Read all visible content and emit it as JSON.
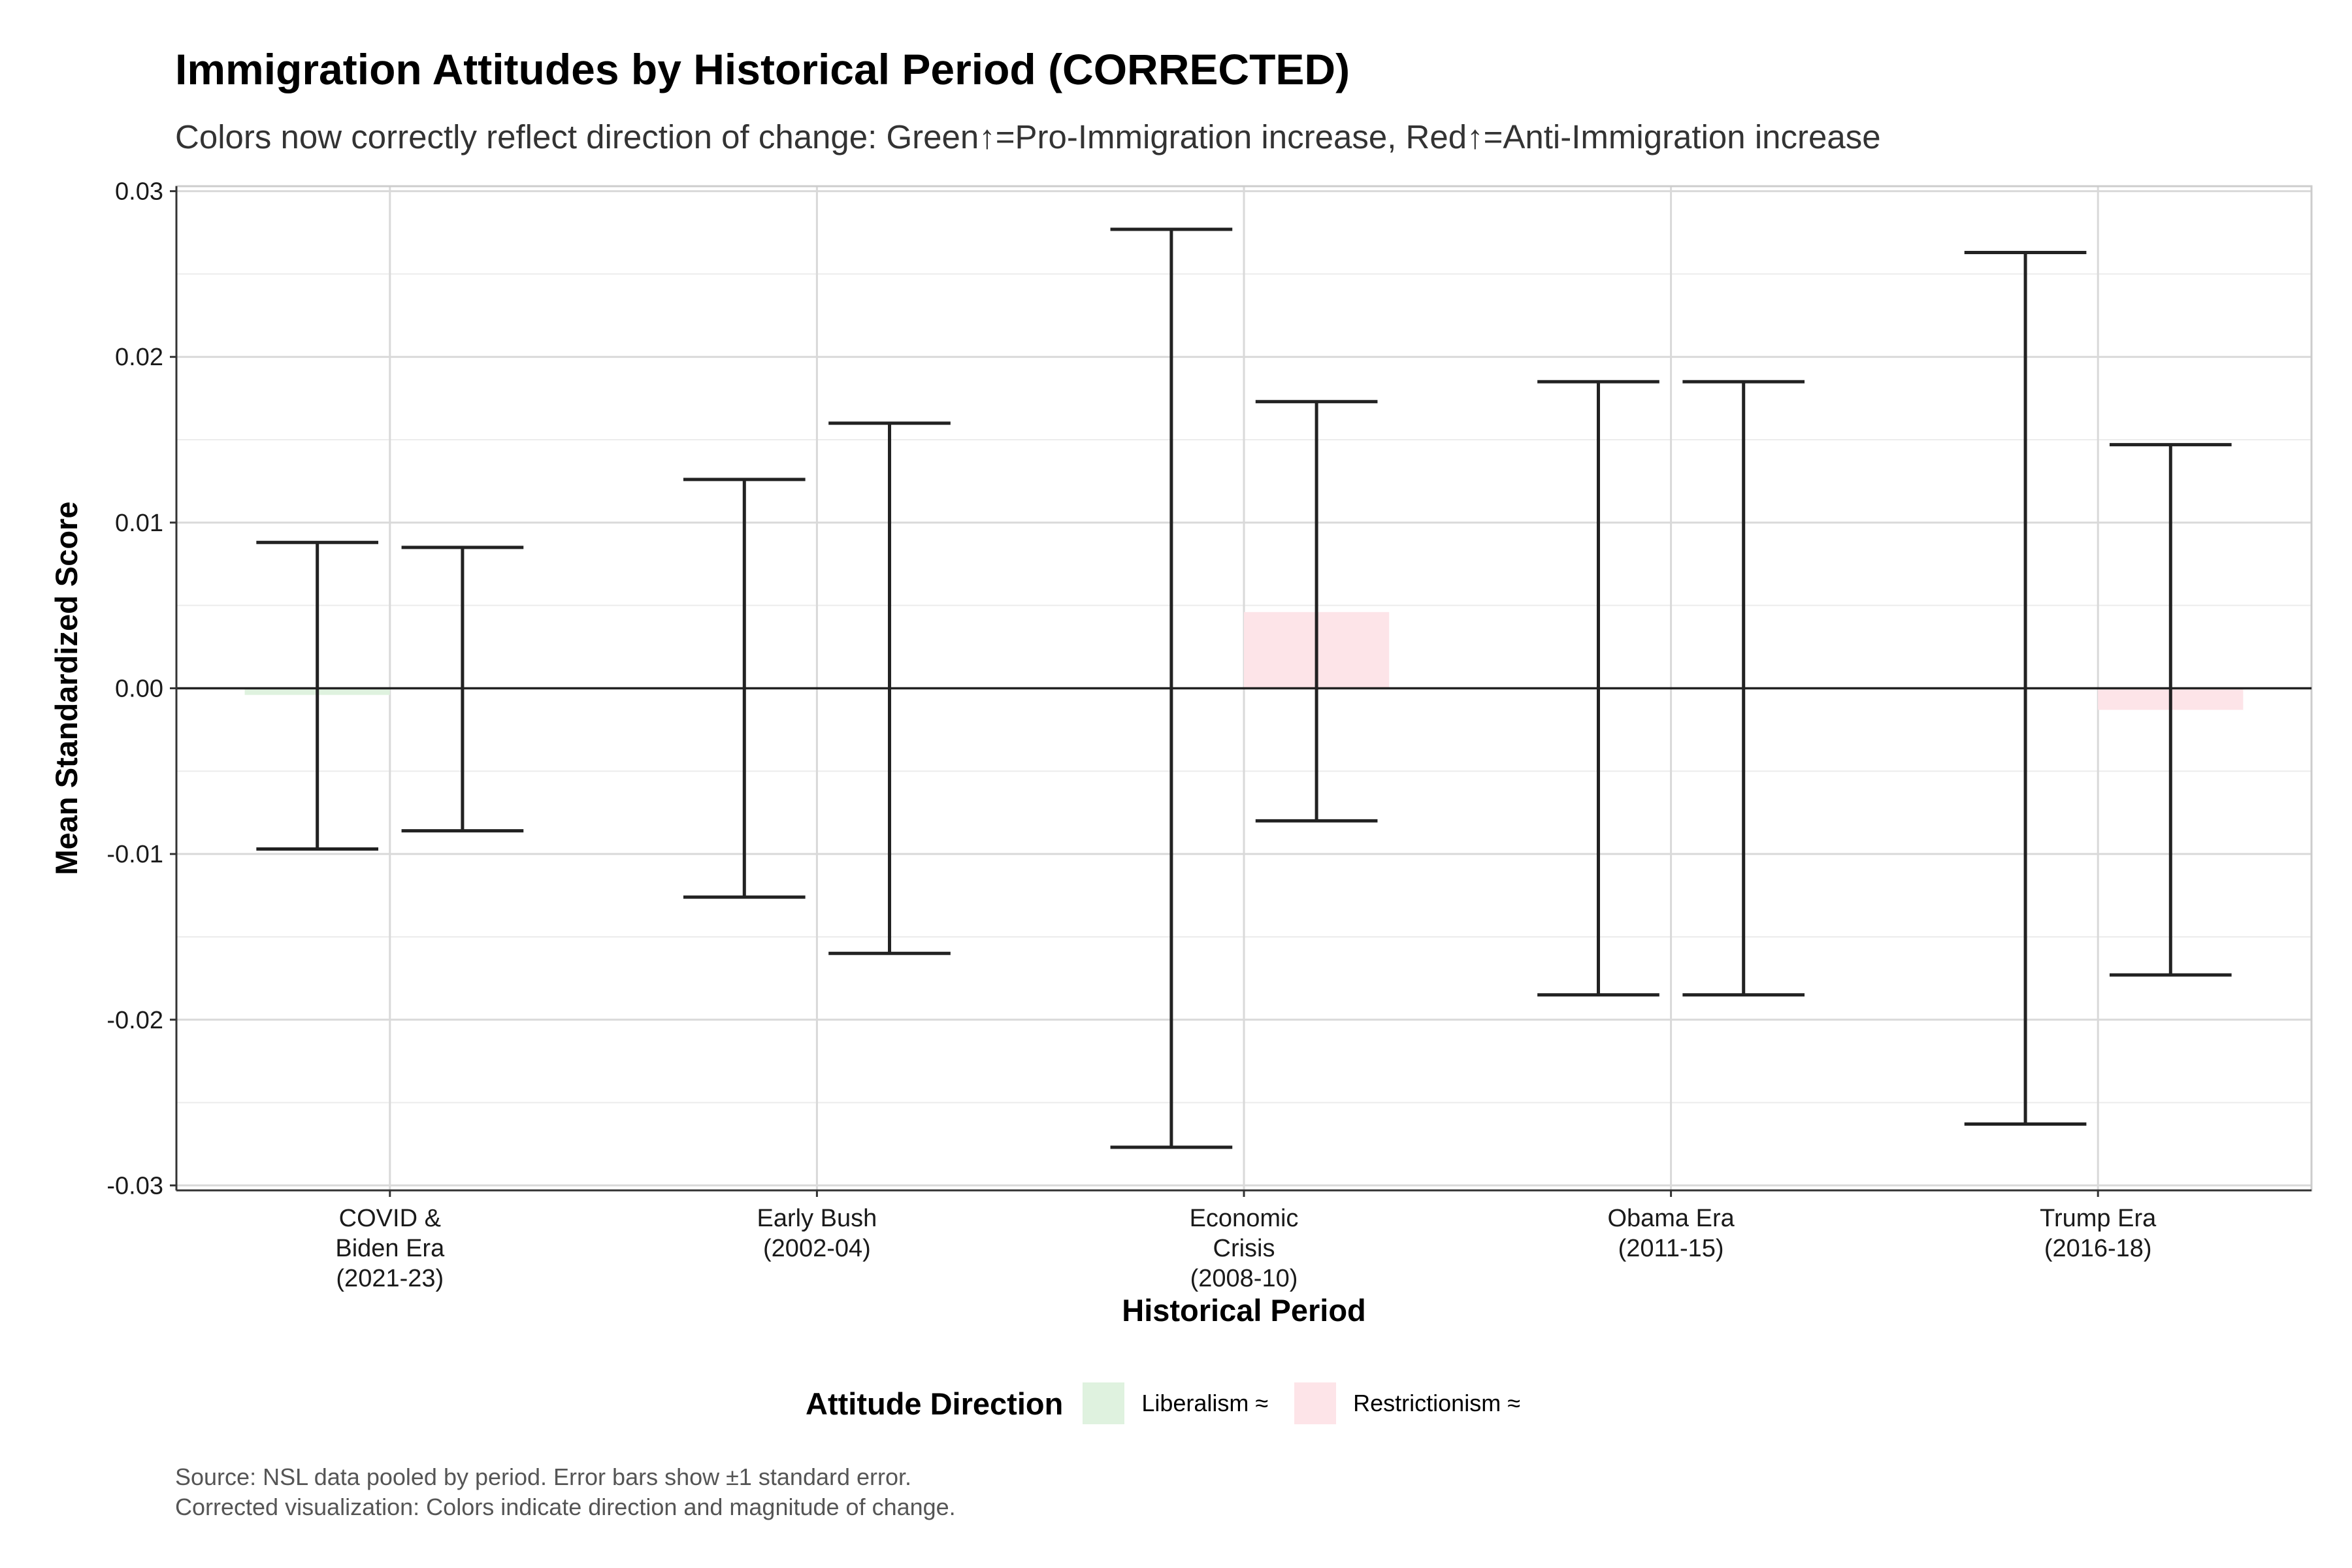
{
  "title": "Immigration Attitudes by Historical Period (CORRECTED)",
  "subtitle": "Colors now correctly reflect direction of change: Green↑=Pro-Immigration increase, Red↑=Anti-Immigration increase",
  "caption_line1": "Source: NSL data pooled by period. Error bars show ±1 standard error.",
  "caption_line2": "Corrected visualization: Colors indicate direction and magnitude of change.",
  "legend": {
    "title": "Attitude Direction",
    "items": [
      {
        "label": "Liberalism ≈",
        "color": "#dff2df"
      },
      {
        "label": "Restrictionism ≈",
        "color": "#fde4e8"
      }
    ]
  },
  "chart_data": {
    "type": "bar",
    "xlabel": "Historical Period",
    "ylabel": "Mean Standardized Score",
    "ylim": [
      -0.0303,
      0.0303
    ],
    "yticks": [
      {
        "value": 0.03,
        "label": "0.03"
      },
      {
        "value": 0.02,
        "label": "0.02"
      },
      {
        "value": 0.01,
        "label": "0.01"
      },
      {
        "value": 0.0,
        "label": "0.00"
      },
      {
        "value": -0.01,
        "label": "-0.01"
      },
      {
        "value": -0.02,
        "label": "-0.02"
      },
      {
        "value": -0.03,
        "label": "-0.03"
      }
    ],
    "categories": [
      [
        "COVID &",
        "Biden Era",
        "(2021-23)"
      ],
      [
        "Early Bush",
        "(2002-04)"
      ],
      [
        "Economic",
        "Crisis",
        "(2008-10)"
      ],
      [
        "Obama Era",
        "(2011-15)"
      ],
      [
        "Trump Era",
        "(2016-18)"
      ]
    ],
    "series": [
      {
        "name": "Liberalism ≈",
        "color": "#dff2df",
        "values": [
          -0.0004,
          0.0,
          0.0,
          0.0,
          0.0
        ],
        "error_low": [
          -0.0097,
          -0.0126,
          -0.0277,
          -0.0185,
          -0.0263
        ],
        "error_high": [
          0.0088,
          0.0126,
          0.0277,
          0.0185,
          0.0263
        ]
      },
      {
        "name": "Restrictionism ≈",
        "color": "#fde4e8",
        "values": [
          0.0,
          0.0,
          0.0046,
          0.0,
          -0.0013
        ],
        "error_low": [
          -0.0086,
          -0.016,
          -0.008,
          -0.0185,
          -0.0173
        ],
        "error_high": [
          0.0085,
          0.016,
          0.0173,
          0.0185,
          0.0147
        ]
      }
    ],
    "grid": true,
    "legend_position": "bottom"
  }
}
